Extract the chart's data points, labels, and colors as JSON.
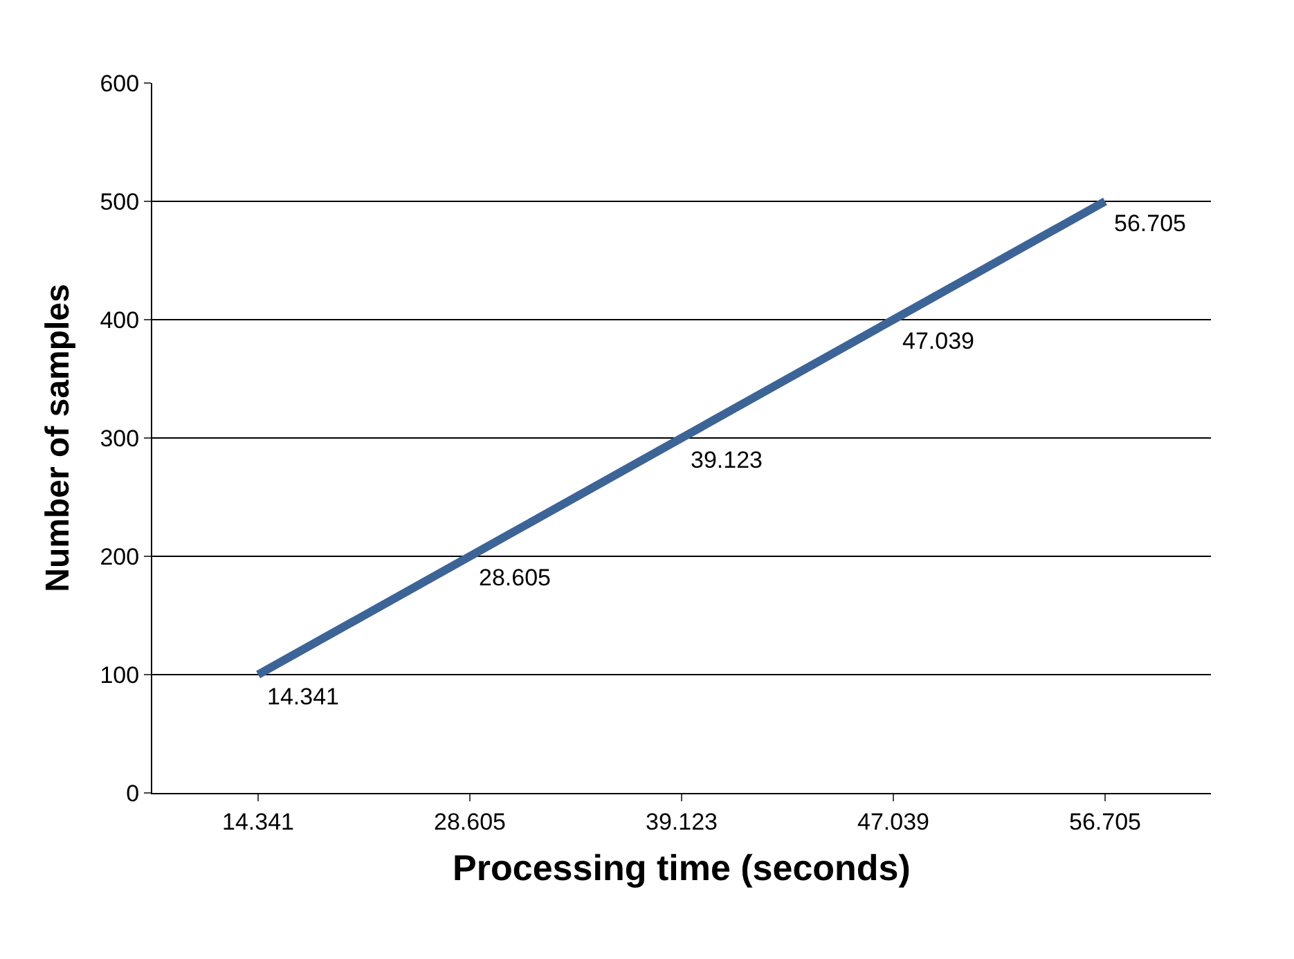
{
  "chart_data": {
    "type": "line",
    "xlabel": "Processing time (seconds)",
    "ylabel": "Number of samples",
    "categories": [
      "14.341",
      "28.605",
      "39.123",
      "47.039",
      "56.705"
    ],
    "series": [
      {
        "color": "#3d6496",
        "values": [
          100,
          200,
          300,
          400,
          500
        ]
      }
    ],
    "annotations": [
      {
        "text": "14.341",
        "x": "14.341",
        "y": 100
      },
      {
        "text": "28.605",
        "x": "28.605",
        "y": 200
      },
      {
        "text": "39.123",
        "x": "39.123",
        "y": 300
      },
      {
        "text": "47.039",
        "x": "47.039",
        "y": 400
      },
      {
        "text": "56.705",
        "x": "56.705",
        "y": 500
      }
    ],
    "ylim": [
      0,
      600
    ],
    "yticks": [
      0,
      100,
      200,
      300,
      400,
      500,
      600
    ],
    "grid": "y",
    "legend": false,
    "marker": "none",
    "line_style": "solid"
  }
}
